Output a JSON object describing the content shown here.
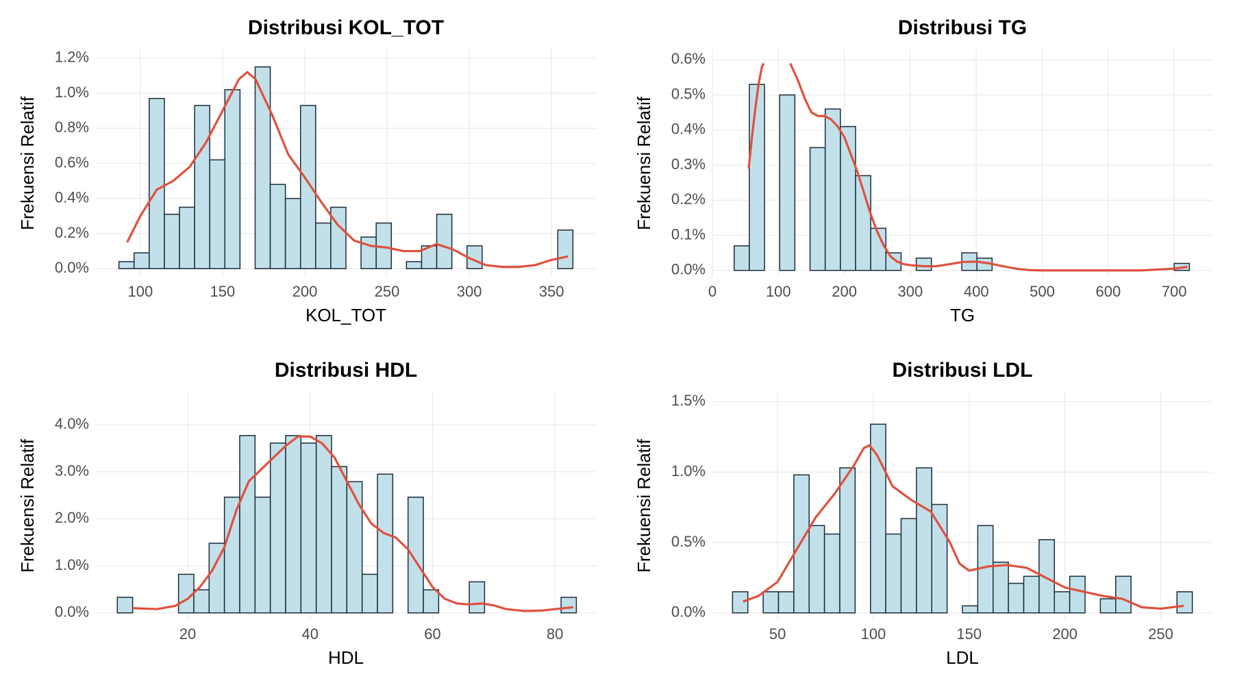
{
  "chart_data": [
    {
      "type": "histogram",
      "title": "Distribusi KOL_TOT",
      "x_label": "KOL_TOT",
      "y_label": "Frekuensi Relatif",
      "color": "#c2e0ea",
      "edge_color": "#1c2b3a",
      "bins": [
        87,
        96.2,
        105.4,
        114.6,
        123.8,
        133,
        142.2,
        151.4,
        160.6,
        169.8,
        179,
        188.2,
        197.4,
        206.6,
        215.8,
        225,
        234.2,
        243.4,
        252.6,
        261.8,
        271,
        280.2,
        289.4,
        298.6,
        307.8,
        317,
        326.2,
        335.4,
        344.6,
        353.8,
        363
      ],
      "values": [
        0.04,
        0.09,
        0.97,
        0.31,
        0.35,
        0.93,
        0.62,
        1.02,
        0,
        1.15,
        0.48,
        0.4,
        0.93,
        0.26,
        0.35,
        0,
        0.18,
        0.26,
        0,
        0.04,
        0.13,
        0.31,
        0,
        0.13,
        0,
        0,
        0,
        0,
        0,
        0.22
      ],
      "line": {
        "color": "#e0503c",
        "x": [
          92,
          100,
          110,
          120,
          130,
          140,
          150,
          160,
          165,
          170,
          180,
          190,
          200,
          210,
          220,
          230,
          240,
          250,
          260,
          270,
          280,
          290,
          300,
          310,
          320,
          330,
          340,
          350,
          360
        ],
        "values": [
          0.15,
          0.3,
          0.45,
          0.5,
          0.58,
          0.72,
          0.9,
          1.08,
          1.12,
          1.08,
          0.88,
          0.65,
          0.52,
          0.38,
          0.25,
          0.16,
          0.13,
          0.12,
          0.1,
          0.1,
          0.14,
          0.11,
          0.06,
          0.02,
          0.01,
          0.01,
          0.02,
          0.05,
          0.07
        ]
      },
      "xlim": [
        73,
        377
      ],
      "xticks": [
        100,
        150,
        200,
        250,
        300,
        350
      ],
      "ylim": [
        -0.05,
        1.25
      ],
      "yticks": [
        {
          "value": 0,
          "label": "0.0%"
        },
        {
          "value": 0.2,
          "label": "0.2%"
        },
        {
          "value": 0.4,
          "label": "0.4%"
        },
        {
          "value": 0.6,
          "label": "0.6%"
        },
        {
          "value": 0.8,
          "label": "0.8%"
        },
        {
          "value": 1.0,
          "label": "1.0%"
        },
        {
          "value": 1.2,
          "label": "1.2%"
        }
      ],
      "grid": true
    },
    {
      "type": "histogram",
      "title": "Distribusi TG",
      "x_label": "TG",
      "y_label": "Frekuensi Relatif",
      "color": "#c2e0ea",
      "edge_color": "#1c2b3a",
      "bins": [
        33,
        56,
        79,
        102,
        125,
        148,
        171,
        194,
        217,
        240,
        263,
        286,
        309,
        332,
        355,
        378,
        401,
        424,
        447,
        470,
        493,
        516,
        539,
        562,
        585,
        608,
        631,
        654,
        677,
        700,
        723
      ],
      "values": [
        0.07,
        0.53,
        0,
        0.5,
        0,
        0.35,
        0.46,
        0.41,
        0.27,
        0.12,
        0.05,
        0,
        0.035,
        0,
        0,
        0.05,
        0.035,
        0,
        0,
        0,
        0,
        0,
        0,
        0,
        0,
        0,
        0,
        0,
        0,
        0.02
      ],
      "line": {
        "color": "#e0503c",
        "x": [
          55,
          60,
          65,
          70,
          75,
          78,
          100,
          118,
          130,
          140,
          150,
          160,
          170,
          180,
          190,
          200,
          210,
          220,
          230,
          240,
          250,
          260,
          270,
          280,
          290,
          300,
          320,
          340,
          360,
          380,
          400,
          420,
          440,
          460,
          480,
          500,
          550,
          600,
          650,
          700,
          720
        ],
        "values": [
          0.29,
          0.38,
          0.46,
          0.53,
          0.58,
          0.59,
          null,
          0.59,
          0.54,
          0.49,
          0.45,
          0.44,
          0.44,
          0.43,
          0.41,
          0.38,
          0.33,
          0.28,
          0.22,
          0.16,
          0.11,
          0.07,
          0.04,
          0.025,
          0.018,
          0.015,
          0.012,
          0.012,
          0.018,
          0.024,
          0.025,
          0.02,
          0.012,
          0.005,
          0.001,
          0,
          0,
          0,
          0,
          0.005,
          0.01
        ]
      },
      "xlim": [
        0,
        758
      ],
      "xticks": [
        0,
        100,
        200,
        300,
        400,
        500,
        600,
        700
      ],
      "ylim": [
        -0.02,
        0.63
      ],
      "yticks": [
        {
          "value": 0,
          "label": "0.0%"
        },
        {
          "value": 0.1,
          "label": "0.1%"
        },
        {
          "value": 0.2,
          "label": "0.2%"
        },
        {
          "value": 0.3,
          "label": "0.3%"
        },
        {
          "value": 0.4,
          "label": "0.4%"
        },
        {
          "value": 0.5,
          "label": "0.5%"
        },
        {
          "value": 0.6,
          "label": "0.6%"
        }
      ],
      "grid": true
    },
    {
      "type": "histogram",
      "title": "Distribusi HDL",
      "x_label": "HDL",
      "y_label": "Frekuensi Relatif",
      "color": "#c2e0ea",
      "edge_color": "#1c2b3a",
      "bins": [
        8.5,
        11,
        13.5,
        16,
        18.5,
        21,
        23.5,
        26,
        28.5,
        31,
        33.5,
        36,
        38.5,
        41,
        43.5,
        46,
        48.5,
        51,
        53.5,
        56,
        58.5,
        61,
        63.5,
        66,
        68.5,
        71,
        73.5,
        76,
        78.5,
        81,
        83.5
      ],
      "values": [
        0.33,
        0,
        0,
        0,
        0.82,
        0.49,
        1.48,
        2.46,
        3.77,
        2.46,
        3.61,
        3.77,
        3.61,
        3.77,
        3.11,
        2.79,
        0.82,
        2.95,
        0,
        2.46,
        0.49,
        0,
        0,
        0.66,
        0,
        0,
        0,
        0,
        0,
        0.33
      ],
      "line": {
        "color": "#e0503c",
        "x": [
          11,
          15,
          18,
          20,
          22,
          24,
          26,
          28,
          30,
          32,
          34,
          36,
          38,
          40,
          42,
          44,
          46,
          48,
          50,
          52,
          54,
          56,
          58,
          60,
          62,
          64,
          66,
          68,
          70,
          72,
          75,
          78,
          80,
          83
        ],
        "values": [
          0.1,
          0.08,
          0.15,
          0.3,
          0.55,
          0.9,
          1.4,
          2.2,
          2.8,
          3.05,
          3.3,
          3.55,
          3.75,
          3.75,
          3.6,
          3.3,
          2.8,
          2.3,
          1.9,
          1.7,
          1.6,
          1.35,
          0.95,
          0.55,
          0.3,
          0.2,
          0.18,
          0.2,
          0.16,
          0.08,
          0.04,
          0.05,
          0.08,
          0.12
        ]
      },
      "xlim": [
        5,
        86.7
      ],
      "xticks": [
        20,
        40,
        60,
        80
      ],
      "ylim": [
        -0.15,
        4.7
      ],
      "yticks": [
        {
          "value": 0,
          "label": "0.0%"
        },
        {
          "value": 1,
          "label": "1.0%"
        },
        {
          "value": 2,
          "label": "2.0%"
        },
        {
          "value": 3,
          "label": "3.0%"
        },
        {
          "value": 4,
          "label": "4.0%"
        }
      ],
      "grid": true
    },
    {
      "type": "histogram",
      "title": "Distribusi LDL",
      "x_label": "LDL",
      "y_label": "Frekuensi Relatif",
      "color": "#c2e0ea",
      "edge_color": "#1c2b3a",
      "bins": [
        26.5,
        34.5,
        42.5,
        50.5,
        58.5,
        66.5,
        74.5,
        82.5,
        90.5,
        98.5,
        106.5,
        114.5,
        122.5,
        130.5,
        138.5,
        146.5,
        154.5,
        162.5,
        170.5,
        178.5,
        186.5,
        194.5,
        202.5,
        210.5,
        218.5,
        226.5,
        234.5,
        242.5,
        250.5,
        258.5,
        266.5
      ],
      "values": [
        0.15,
        0,
        0.15,
        0.15,
        0.98,
        0.62,
        0.56,
        1.03,
        0,
        1.34,
        0.56,
        0.67,
        1.03,
        0.77,
        0,
        0.05,
        0.62,
        0.36,
        0.21,
        0.26,
        0.52,
        0.15,
        0.26,
        0,
        0.1,
        0.26,
        0,
        0,
        0,
        0.15
      ],
      "line": {
        "color": "#e0503c",
        "x": [
          32,
          40,
          50,
          60,
          70,
          80,
          90,
          95,
          98,
          102,
          110,
          120,
          130,
          140,
          145,
          150,
          160,
          170,
          180,
          190,
          200,
          210,
          220,
          230,
          240,
          250,
          262
        ],
        "values": [
          0.08,
          0.12,
          0.22,
          0.45,
          0.68,
          0.85,
          1.05,
          1.17,
          1.19,
          1.12,
          0.9,
          0.8,
          0.72,
          0.5,
          0.35,
          0.3,
          0.33,
          0.34,
          0.32,
          0.25,
          0.18,
          0.15,
          0.12,
          0.1,
          0.04,
          0.03,
          0.05
        ]
      },
      "xlim": [
        16,
        277
      ],
      "xticks": [
        50,
        100,
        150,
        200,
        250
      ],
      "ylim": [
        -0.05,
        1.57
      ],
      "yticks": [
        {
          "value": 0,
          "label": "0.0%"
        },
        {
          "value": 0.5,
          "label": "0.5%"
        },
        {
          "value": 1.0,
          "label": "1.0%"
        },
        {
          "value": 1.5,
          "label": "1.5%"
        }
      ],
      "grid": true
    }
  ]
}
